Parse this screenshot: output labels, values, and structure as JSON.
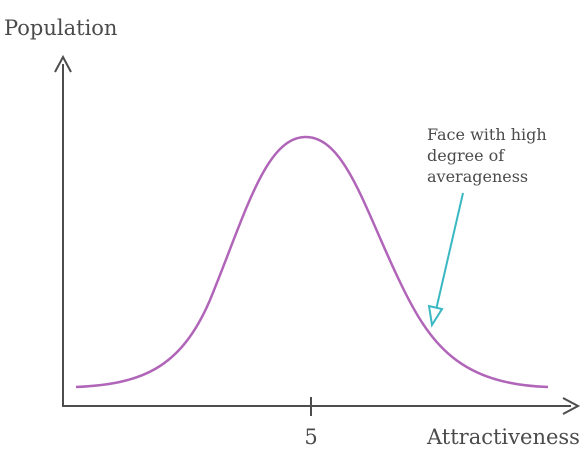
{
  "diagram": {
    "y_axis_label": "Population",
    "x_axis_label": "Attractiveness",
    "tick_label": "5",
    "annotation_lines": [
      "Face with high",
      "degree of",
      "averageness"
    ],
    "colors": {
      "axis": "#4d4d4d",
      "curve": "#b065b8",
      "arrow": "#39b8c3",
      "text": "#4b4b4b"
    }
  }
}
